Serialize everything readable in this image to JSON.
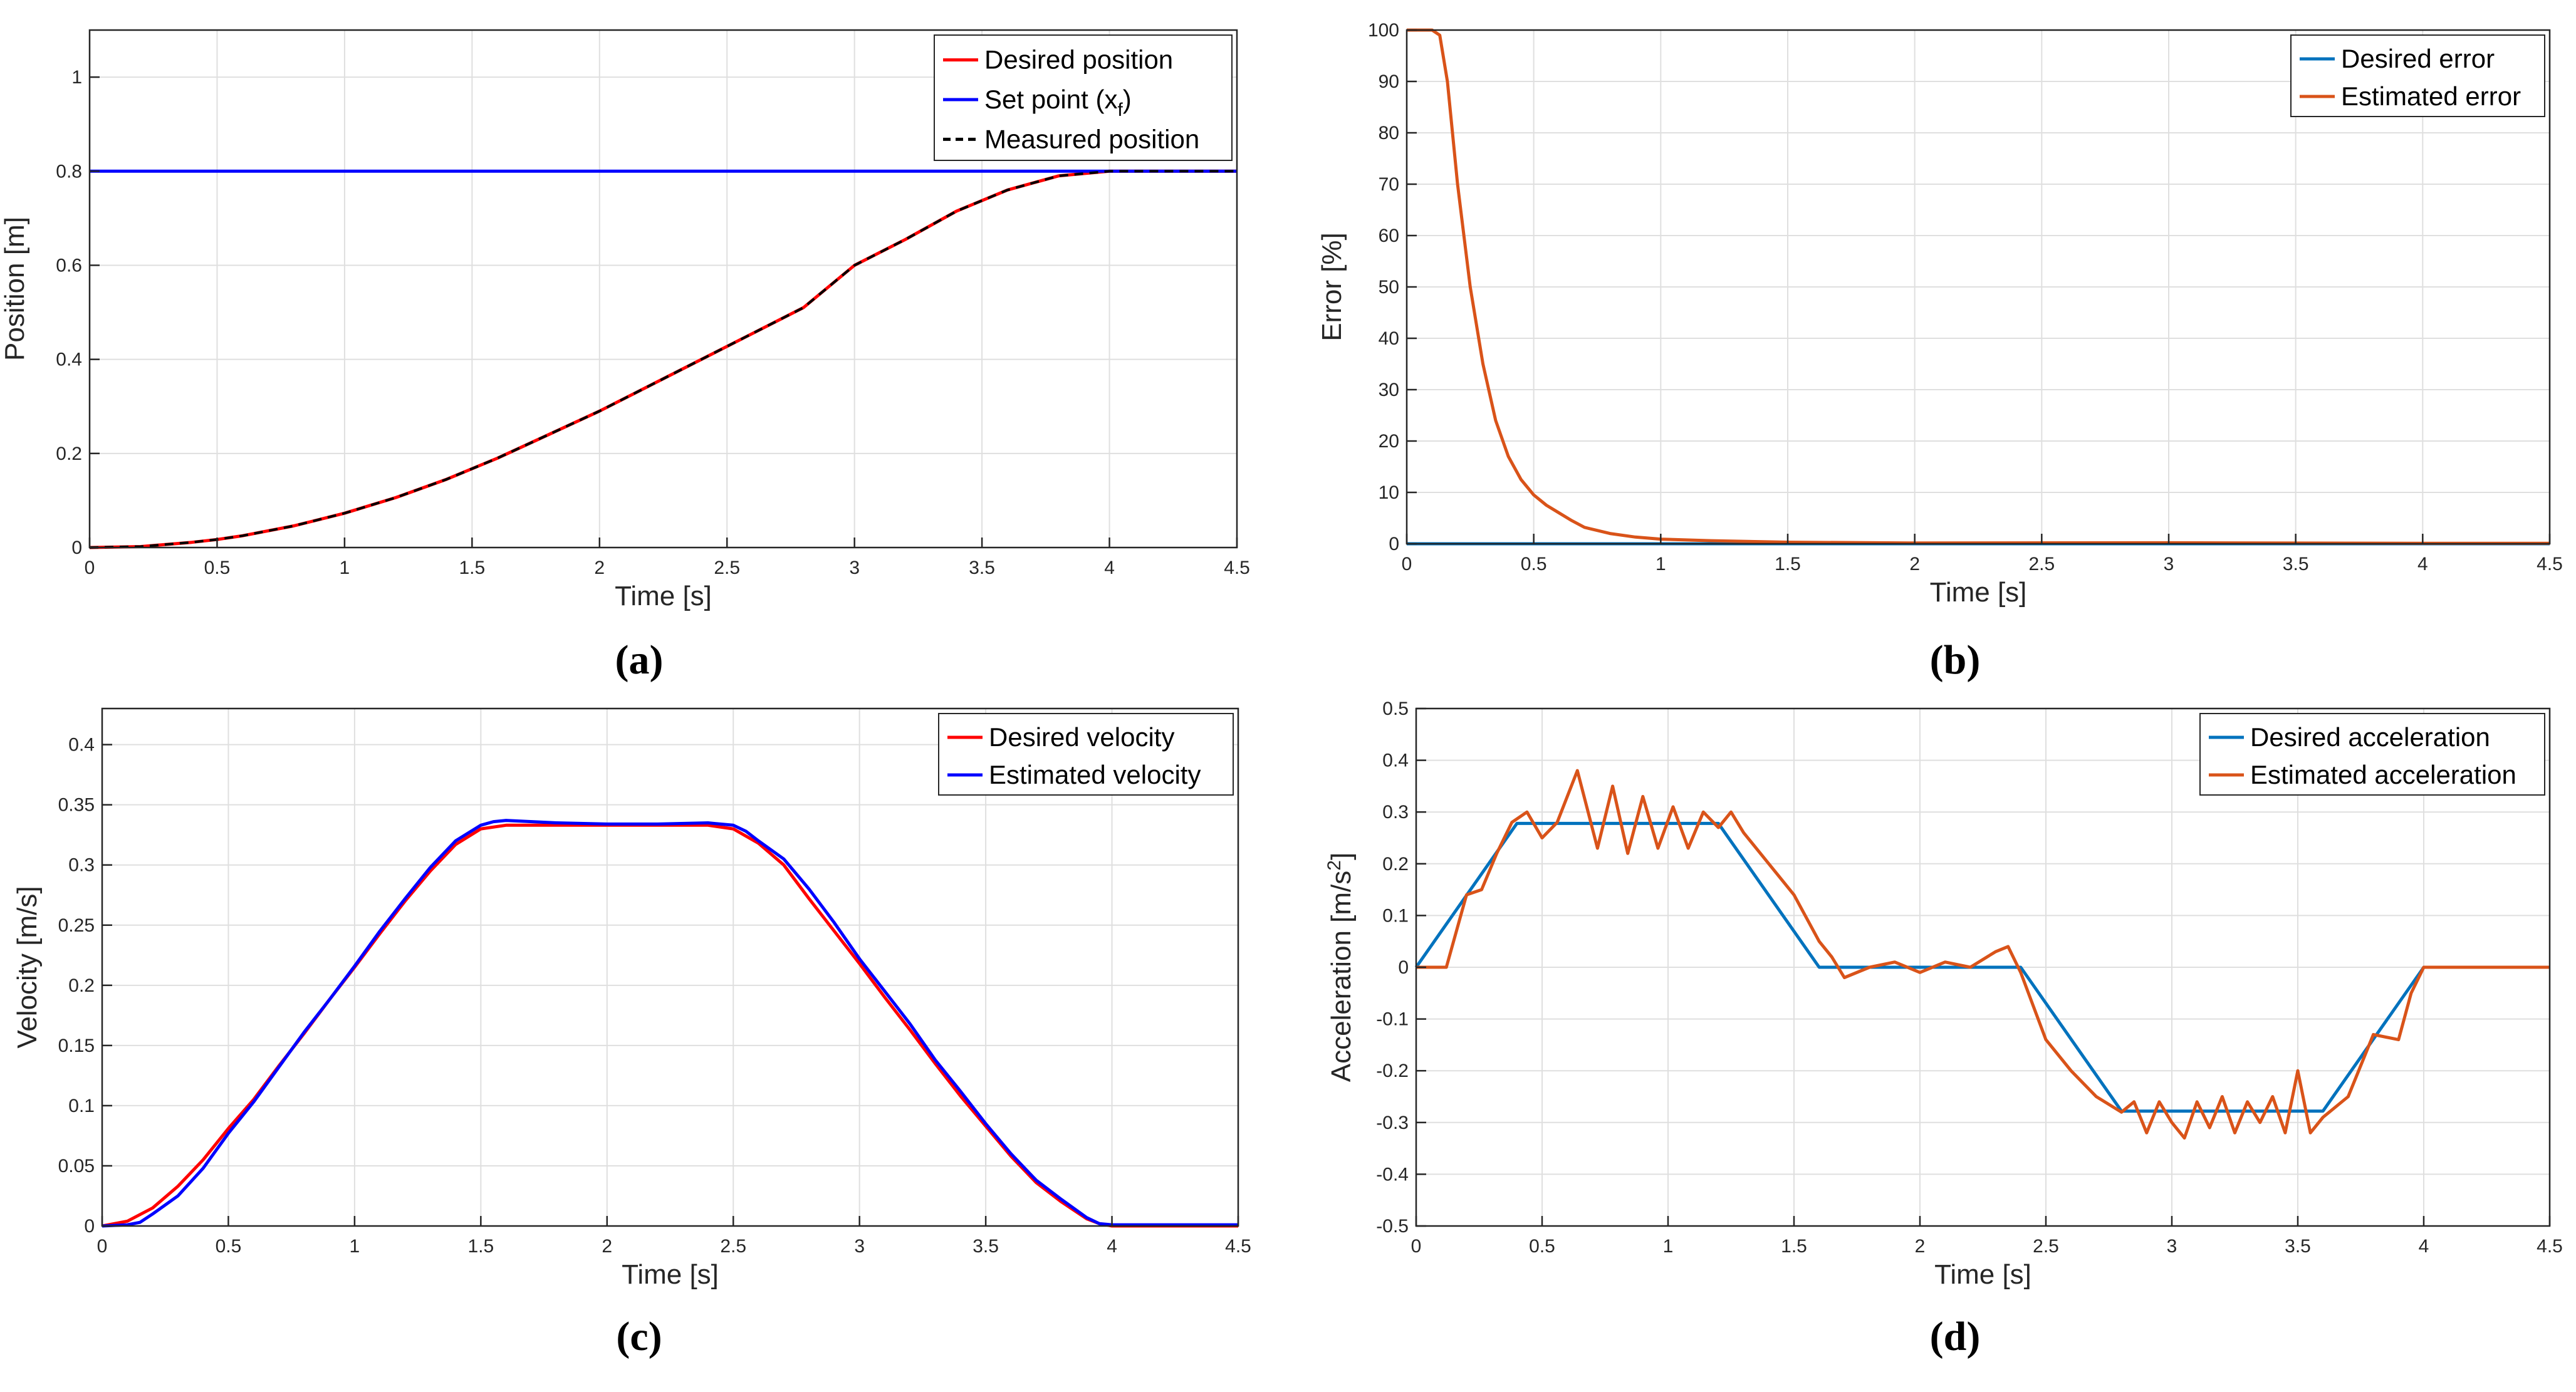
{
  "figure": {
    "panels": [
      "a",
      "b",
      "c",
      "d"
    ]
  },
  "chart_data": [
    {
      "id": "a",
      "type": "line",
      "caption": "(a)",
      "xlabel": "Time [s]",
      "ylabel": "Position [m]",
      "xlim": [
        0,
        4.5
      ],
      "ylim": [
        0,
        1.1
      ],
      "xticks": [
        0,
        0.5,
        1,
        1.5,
        2,
        2.5,
        3,
        3.5,
        4,
        4.5
      ],
      "xtick_labels": [
        "0",
        "0.5",
        "1",
        "1.5",
        "2",
        "2.5",
        "3",
        "3.5",
        "4",
        "4.5"
      ],
      "yticks": [
        0,
        0.2,
        0.4,
        0.6,
        0.8,
        1
      ],
      "ytick_labels": [
        "0",
        "0.2",
        "0.4",
        "0.6",
        "0.8",
        "1"
      ],
      "grid": true,
      "legend_position": "top-right",
      "series": [
        {
          "name": "Desired position",
          "color": "#ff0000",
          "style": "solid",
          "x": [
            0,
            0.2,
            0.4,
            0.5,
            0.6,
            0.8,
            1.0,
            1.2,
            1.4,
            1.6,
            1.8,
            2.0,
            2.2,
            2.4,
            2.6,
            2.8,
            3.0,
            3.2,
            3.4,
            3.6,
            3.8,
            4.0,
            4.5
          ],
          "y": [
            0,
            0.002,
            0.011,
            0.017,
            0.025,
            0.046,
            0.073,
            0.106,
            0.145,
            0.19,
            0.24,
            0.29,
            0.345,
            0.4,
            0.455,
            0.51,
            0.6,
            0.655,
            0.715,
            0.76,
            0.79,
            0.8,
            0.8
          ]
        },
        {
          "name": "Set point (x_f)",
          "color": "#0000ff",
          "style": "solid",
          "x": [
            0,
            4.5
          ],
          "y": [
            0.8,
            0.8
          ]
        },
        {
          "name": "Measured position",
          "color": "#000000",
          "style": "dashed",
          "x": [
            0,
            0.2,
            0.4,
            0.5,
            0.6,
            0.8,
            1.0,
            1.2,
            1.4,
            1.6,
            1.8,
            2.0,
            2.2,
            2.4,
            2.6,
            2.8,
            3.0,
            3.2,
            3.4,
            3.6,
            3.8,
            4.0,
            4.5
          ],
          "y": [
            0,
            0.002,
            0.011,
            0.017,
            0.025,
            0.046,
            0.073,
            0.106,
            0.145,
            0.19,
            0.24,
            0.29,
            0.345,
            0.4,
            0.455,
            0.51,
            0.6,
            0.655,
            0.715,
            0.76,
            0.79,
            0.8,
            0.8
          ]
        }
      ],
      "legend": [
        {
          "label": "Desired position",
          "sub": "",
          "tail": ""
        },
        {
          "label": "Set point (x",
          "sub": "f",
          "tail": ")"
        },
        {
          "label": "Measured position",
          "sub": "",
          "tail": ""
        }
      ]
    },
    {
      "id": "b",
      "type": "line",
      "caption": "(b)",
      "xlabel": "Time [s]",
      "ylabel": "Error [%]",
      "xlim": [
        0,
        4.5
      ],
      "ylim": [
        0,
        100
      ],
      "xticks": [
        0,
        0.5,
        1,
        1.5,
        2,
        2.5,
        3,
        3.5,
        4,
        4.5
      ],
      "xtick_labels": [
        "0",
        "0.5",
        "1",
        "1.5",
        "2",
        "2.5",
        "3",
        "3.5",
        "4",
        "4.5"
      ],
      "yticks": [
        0,
        10,
        20,
        30,
        40,
        50,
        60,
        70,
        80,
        90,
        100
      ],
      "ytick_labels": [
        "0",
        "10",
        "20",
        "30",
        "40",
        "50",
        "60",
        "70",
        "80",
        "90",
        "100"
      ],
      "grid": true,
      "legend_position": "top-right",
      "series": [
        {
          "name": "Desired error",
          "color": "#0072bd",
          "style": "solid",
          "x": [
            0,
            4.5
          ],
          "y": [
            0,
            0
          ]
        },
        {
          "name": "Estimated error",
          "color": "#d95319",
          "style": "solid",
          "x": [
            0,
            0.1,
            0.13,
            0.16,
            0.2,
            0.25,
            0.3,
            0.35,
            0.4,
            0.45,
            0.5,
            0.55,
            0.6,
            0.65,
            0.7,
            0.8,
            0.9,
            1.0,
            1.2,
            1.5,
            2.0,
            3.0,
            4.0,
            4.5
          ],
          "y": [
            100,
            100,
            99,
            90,
            70,
            50,
            35,
            24,
            17,
            12.5,
            9.5,
            7.5,
            6,
            4.5,
            3.2,
            2,
            1.3,
            0.9,
            0.6,
            0.3,
            0.15,
            0.2,
            0.1,
            0.1
          ]
        }
      ],
      "legend": [
        {
          "label": "Desired error",
          "sub": "",
          "tail": ""
        },
        {
          "label": "Estimated error",
          "sub": "",
          "tail": ""
        }
      ]
    },
    {
      "id": "c",
      "type": "line",
      "caption": "(c)",
      "xlabel": "Time [s]",
      "ylabel": "Velocity [m/s]",
      "xlim": [
        0,
        4.5
      ],
      "ylim": [
        0,
        0.43
      ],
      "xticks": [
        0,
        0.5,
        1,
        1.5,
        2,
        2.5,
        3,
        3.5,
        4,
        4.5
      ],
      "xtick_labels": [
        "0",
        "0.5",
        "1",
        "1.5",
        "2",
        "2.5",
        "3",
        "3.5",
        "4",
        "4.5"
      ],
      "yticks": [
        0,
        0.05,
        0.1,
        0.15,
        0.2,
        0.25,
        0.3,
        0.35,
        0.4
      ],
      "ytick_labels": [
        "0",
        "0.05",
        "0.1",
        "0.15",
        "0.2",
        "0.25",
        "0.3",
        "0.35",
        "0.4"
      ],
      "grid": true,
      "legend_position": "top-right",
      "series": [
        {
          "name": "Desired velocity",
          "color": "#ff0000",
          "style": "solid",
          "x": [
            0,
            0.1,
            0.2,
            0.3,
            0.4,
            0.5,
            0.6,
            0.7,
            0.8,
            0.9,
            1.0,
            1.1,
            1.2,
            1.3,
            1.4,
            1.5,
            1.6,
            2.0,
            2.4,
            2.5,
            2.6,
            2.7,
            2.8,
            2.9,
            3.0,
            3.1,
            3.2,
            3.3,
            3.4,
            3.5,
            3.6,
            3.7,
            3.8,
            3.9,
            3.95,
            4.0,
            4.5
          ],
          "y": [
            0,
            0.004,
            0.015,
            0.033,
            0.055,
            0.081,
            0.105,
            0.133,
            0.16,
            0.188,
            0.215,
            0.243,
            0.27,
            0.295,
            0.317,
            0.33,
            0.333,
            0.333,
            0.333,
            0.33,
            0.318,
            0.3,
            0.272,
            0.245,
            0.218,
            0.19,
            0.163,
            0.135,
            0.108,
            0.083,
            0.058,
            0.036,
            0.02,
            0.006,
            0.002,
            0,
            0
          ]
        },
        {
          "name": "Estimated velocity",
          "color": "#0000ff",
          "style": "solid",
          "x": [
            0,
            0.1,
            0.15,
            0.2,
            0.3,
            0.4,
            0.5,
            0.6,
            0.7,
            0.8,
            0.9,
            1.0,
            1.1,
            1.2,
            1.3,
            1.4,
            1.5,
            1.55,
            1.6,
            1.8,
            2.0,
            2.2,
            2.4,
            2.5,
            2.55,
            2.6,
            2.7,
            2.8,
            2.9,
            3.0,
            3.1,
            3.2,
            3.3,
            3.4,
            3.5,
            3.6,
            3.7,
            3.8,
            3.9,
            3.95,
            4.0,
            4.5
          ],
          "y": [
            0,
            0.001,
            0.003,
            0.01,
            0.025,
            0.048,
            0.077,
            0.103,
            0.132,
            0.161,
            0.188,
            0.216,
            0.245,
            0.272,
            0.298,
            0.32,
            0.333,
            0.336,
            0.337,
            0.335,
            0.334,
            0.334,
            0.335,
            0.333,
            0.328,
            0.32,
            0.305,
            0.28,
            0.252,
            0.222,
            0.195,
            0.168,
            0.138,
            0.112,
            0.085,
            0.06,
            0.038,
            0.022,
            0.007,
            0.002,
            0.001,
            0.001
          ]
        }
      ],
      "legend": [
        {
          "label": "Desired velocity",
          "sub": "",
          "tail": ""
        },
        {
          "label": "Estimated velocity",
          "sub": "",
          "tail": ""
        }
      ]
    },
    {
      "id": "d",
      "type": "line",
      "caption": "(d)",
      "xlabel": "Time [s]",
      "ylabel": "Acceleration [m/s",
      "ylabel_sup": "2",
      "ylabel_tail": "]",
      "xlim": [
        0,
        4.5
      ],
      "ylim": [
        -0.5,
        0.5
      ],
      "xticks": [
        0,
        0.5,
        1,
        1.5,
        2,
        2.5,
        3,
        3.5,
        4,
        4.5
      ],
      "xtick_labels": [
        "0",
        "0.5",
        "1",
        "1.5",
        "2",
        "2.5",
        "3",
        "3.5",
        "4",
        "4.5"
      ],
      "yticks": [
        -0.5,
        -0.4,
        -0.3,
        -0.2,
        -0.1,
        0,
        0.1,
        0.2,
        0.3,
        0.4,
        0.5
      ],
      "ytick_labels": [
        "-0.5",
        "-0.4",
        "-0.3",
        "-0.2",
        "-0.1",
        "0",
        "0.1",
        "0.2",
        "0.3",
        "0.4",
        "0.5"
      ],
      "grid": true,
      "legend_position": "top-right",
      "series": [
        {
          "name": "Desired acceleration",
          "color": "#0072bd",
          "style": "solid",
          "x": [
            0,
            0.4,
            1.2,
            1.6,
            2.4,
            2.8,
            3.6,
            4.0,
            4.5
          ],
          "y": [
            0,
            0.278,
            0.278,
            0,
            0,
            -0.278,
            -0.278,
            0,
            0
          ]
        },
        {
          "name": "Estimated acceleration",
          "color": "#d95319",
          "style": "solid",
          "x": [
            0,
            0.12,
            0.2,
            0.26,
            0.32,
            0.38,
            0.44,
            0.5,
            0.56,
            0.64,
            0.72,
            0.78,
            0.84,
            0.9,
            0.96,
            1.02,
            1.08,
            1.14,
            1.2,
            1.25,
            1.3,
            1.4,
            1.5,
            1.6,
            1.65,
            1.7,
            1.8,
            1.9,
            2.0,
            2.1,
            2.2,
            2.3,
            2.35,
            2.4,
            2.5,
            2.6,
            2.7,
            2.8,
            2.85,
            2.9,
            2.95,
            3.0,
            3.05,
            3.1,
            3.15,
            3.2,
            3.25,
            3.3,
            3.35,
            3.4,
            3.45,
            3.5,
            3.55,
            3.6,
            3.7,
            3.8,
            3.9,
            3.95,
            4.0,
            4.1,
            4.5
          ],
          "y": [
            0,
            0,
            0.14,
            0.15,
            0.22,
            0.28,
            0.3,
            0.25,
            0.28,
            0.38,
            0.23,
            0.35,
            0.22,
            0.33,
            0.23,
            0.31,
            0.23,
            0.3,
            0.27,
            0.3,
            0.26,
            0.2,
            0.14,
            0.05,
            0.02,
            -0.02,
            0.0,
            0.01,
            -0.01,
            0.01,
            0.0,
            0.03,
            0.04,
            -0.01,
            -0.14,
            -0.2,
            -0.25,
            -0.28,
            -0.26,
            -0.32,
            -0.26,
            -0.3,
            -0.33,
            -0.26,
            -0.31,
            -0.25,
            -0.32,
            -0.26,
            -0.3,
            -0.25,
            -0.32,
            -0.2,
            -0.32,
            -0.29,
            -0.25,
            -0.13,
            -0.14,
            -0.05,
            0.0,
            0.0,
            0.0
          ]
        }
      ],
      "legend": [
        {
          "label": "Desired acceleration",
          "sub": "",
          "tail": ""
        },
        {
          "label": "Estimated acceleration",
          "sub": "",
          "tail": ""
        }
      ]
    }
  ]
}
